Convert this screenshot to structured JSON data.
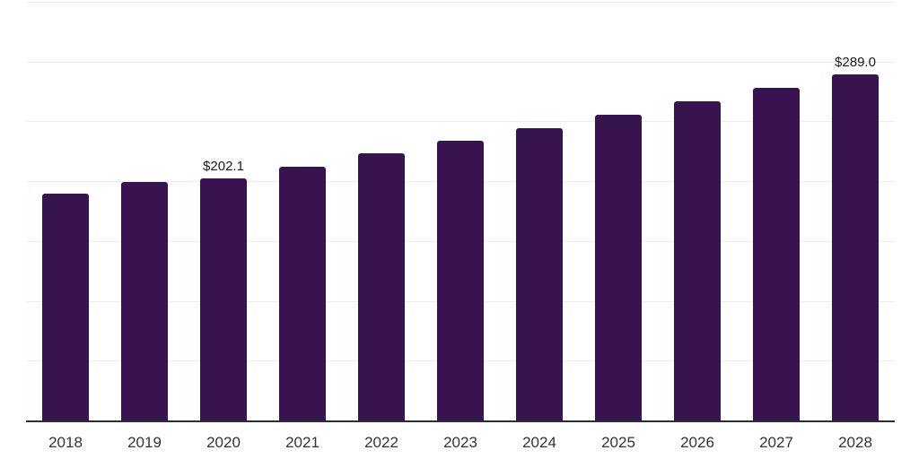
{
  "page": {
    "background": "#ffffff"
  },
  "chart_data": {
    "type": "bar",
    "title": "",
    "xlabel": "",
    "ylabel": "",
    "categories": [
      "2018",
      "2019",
      "2020",
      "2021",
      "2022",
      "2023",
      "2024",
      "2025",
      "2026",
      "2027",
      "2028"
    ],
    "values": [
      189.8,
      199.5,
      202.1,
      212.3,
      223.0,
      233.7,
      244.3,
      255.7,
      266.8,
      277.9,
      289.0
    ],
    "data_labels": {
      "2": "$202.1",
      "10": "$289.0"
    },
    "value_prefix": "$",
    "ylim": [
      0,
      350
    ],
    "grid_step": 50,
    "grid": "horizontal",
    "y_axis_tick_labels_visible": false,
    "legend": false,
    "colors": {
      "bar": "#371450",
      "gridline": "#ececef",
      "axis": "#2d2d2d",
      "tick_label": "#333333",
      "data_label": "#1a1a1a"
    }
  }
}
